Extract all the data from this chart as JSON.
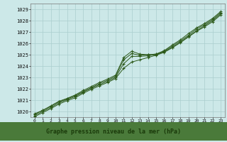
{
  "xlabel": "Graphe pression niveau de la mer (hPa)",
  "x": [
    0,
    1,
    2,
    3,
    4,
    5,
    6,
    7,
    8,
    9,
    10,
    11,
    12,
    13,
    14,
    15,
    16,
    17,
    18,
    19,
    20,
    21,
    22,
    23
  ],
  "line1": [
    1019.8,
    1020.1,
    1020.5,
    1020.9,
    1021.15,
    1021.45,
    1021.85,
    1022.2,
    1022.55,
    1022.85,
    1023.2,
    1024.75,
    1025.3,
    1025.05,
    1025.0,
    1025.05,
    1025.35,
    1025.85,
    1026.3,
    1026.85,
    1027.35,
    1027.75,
    1028.2,
    1028.8
  ],
  "line2": [
    1019.65,
    1020.0,
    1020.35,
    1020.75,
    1021.05,
    1021.3,
    1021.7,
    1022.05,
    1022.35,
    1022.65,
    1023.0,
    1024.2,
    1024.85,
    1024.85,
    1024.9,
    1025.0,
    1025.25,
    1025.65,
    1026.1,
    1026.6,
    1027.1,
    1027.55,
    1028.0,
    1028.6
  ],
  "line3": [
    1019.55,
    1019.9,
    1020.25,
    1020.65,
    1020.95,
    1021.2,
    1021.6,
    1021.95,
    1022.25,
    1022.55,
    1022.9,
    1023.8,
    1024.35,
    1024.55,
    1024.75,
    1024.95,
    1025.2,
    1025.6,
    1026.05,
    1026.55,
    1027.05,
    1027.45,
    1027.9,
    1028.5
  ],
  "line4": [
    1019.75,
    1020.1,
    1020.45,
    1020.85,
    1021.1,
    1021.4,
    1021.75,
    1022.1,
    1022.45,
    1022.75,
    1023.1,
    1024.55,
    1025.1,
    1024.95,
    1025.0,
    1025.05,
    1025.3,
    1025.75,
    1026.2,
    1026.7,
    1027.25,
    1027.65,
    1028.1,
    1028.7
  ],
  "ylim": [
    1019.5,
    1029.5
  ],
  "yticks": [
    1020,
    1021,
    1022,
    1023,
    1024,
    1025,
    1026,
    1027,
    1028,
    1029
  ],
  "bg_color": "#cce8e8",
  "grid_color": "#aacece",
  "line_color": "#2d5a1b",
  "label_bg": "#4a7a3a",
  "label_text_color": "#1a3a0a",
  "label_fontsize": 6.0
}
